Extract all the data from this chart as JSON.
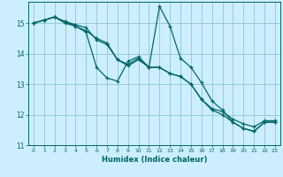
{
  "xlabel": "Humidex (Indice chaleur)",
  "bg_color": "#cceeff",
  "grid_color": "#99cccc",
  "line_color": "#006666",
  "xlim": [
    -0.5,
    23.5
  ],
  "ylim": [
    11.0,
    15.7
  ],
  "yticks": [
    11,
    12,
    13,
    14,
    15
  ],
  "xticks": [
    0,
    1,
    2,
    3,
    4,
    5,
    6,
    7,
    8,
    9,
    10,
    11,
    12,
    13,
    14,
    15,
    16,
    17,
    18,
    19,
    20,
    21,
    22,
    23
  ],
  "line1_y": [
    15.0,
    15.1,
    15.2,
    15.05,
    14.9,
    14.75,
    14.5,
    14.35,
    13.8,
    13.6,
    13.8,
    13.55,
    13.55,
    13.35,
    13.25,
    13.0,
    12.5,
    12.15,
    12.0,
    11.75,
    11.55,
    11.45,
    11.75,
    11.75
  ],
  "line2_y": [
    15.0,
    15.1,
    15.2,
    15.05,
    14.95,
    14.85,
    14.45,
    14.3,
    13.8,
    13.65,
    13.85,
    13.55,
    13.55,
    13.35,
    13.25,
    13.0,
    12.5,
    12.2,
    12.1,
    11.85,
    11.7,
    11.6,
    11.8,
    11.8
  ],
  "line3_y": [
    15.0,
    15.1,
    15.2,
    15.0,
    14.9,
    14.7,
    13.55,
    13.2,
    13.1,
    13.75,
    13.9,
    13.55,
    15.55,
    14.9,
    13.85,
    13.55,
    13.05,
    12.45,
    12.15,
    11.75,
    11.55,
    11.45,
    11.75,
    11.75
  ],
  "marker": "+",
  "markersize": 3,
  "linewidth": 0.9
}
